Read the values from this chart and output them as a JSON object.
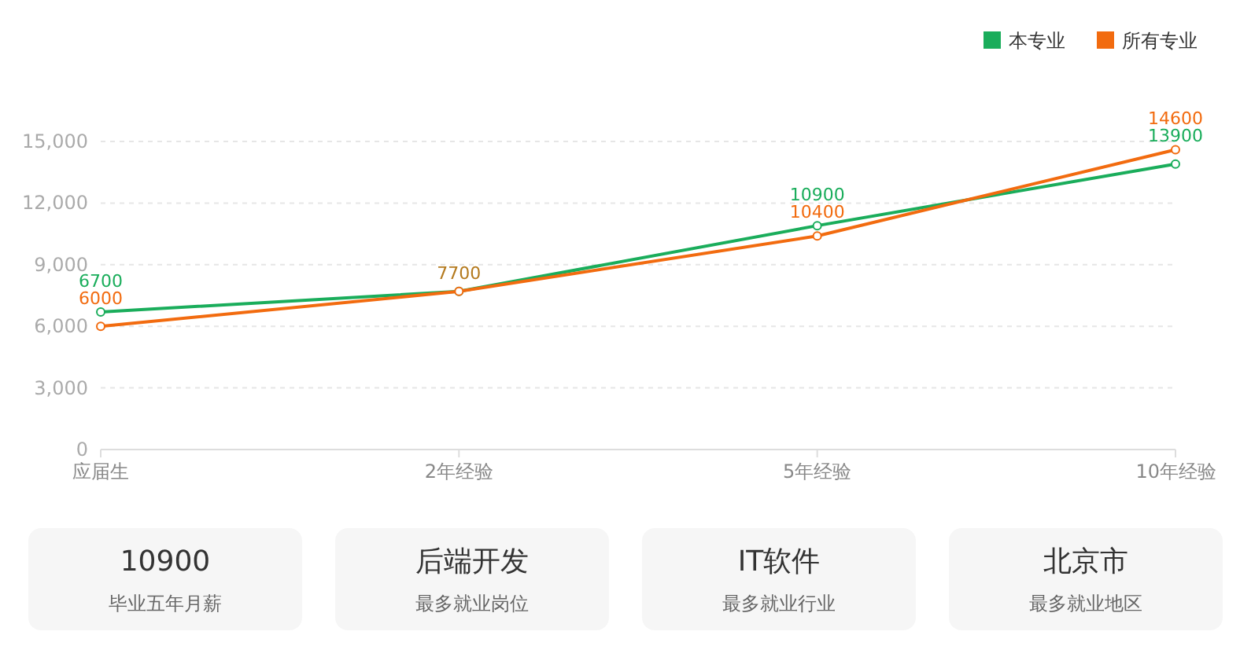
{
  "chart_data": [
    {
      "type": "line",
      "categories": [
        "应届生",
        "2年经验",
        "5年经验",
        "10年经验"
      ],
      "series": [
        {
          "name": "本专业",
          "color": "#1aad5b",
          "values": [
            6700,
            7700,
            10900,
            13900
          ],
          "value_labels": [
            "6700",
            "7700",
            "10900",
            "13900"
          ]
        },
        {
          "name": "所有专业",
          "color": "#f26b0f",
          "values": [
            6000,
            7700,
            10400,
            14600
          ],
          "value_labels": [
            "6000",
            null,
            "10400",
            "14600"
          ]
        }
      ],
      "ylim": [
        0,
        15000
      ],
      "yticks": [
        {
          "value": 0,
          "label": "0"
        },
        {
          "value": 3000,
          "label": "3,000"
        },
        {
          "value": 6000,
          "label": "6,000"
        },
        {
          "value": 9000,
          "label": "9,000"
        },
        {
          "value": 12000,
          "label": "12,000"
        },
        {
          "value": 15000,
          "label": "15,000"
        }
      ],
      "grid": "y",
      "legend": "top right",
      "marker": "circle"
    },
    {
      "type": "other",
      "annotations": [
        "10900",
        "毕业五年月薪",
        "后端开发",
        "最多就业岗位",
        "IT软件",
        "最多就业行业",
        "北京市",
        "最多就业地区"
      ]
    }
  ]
}
